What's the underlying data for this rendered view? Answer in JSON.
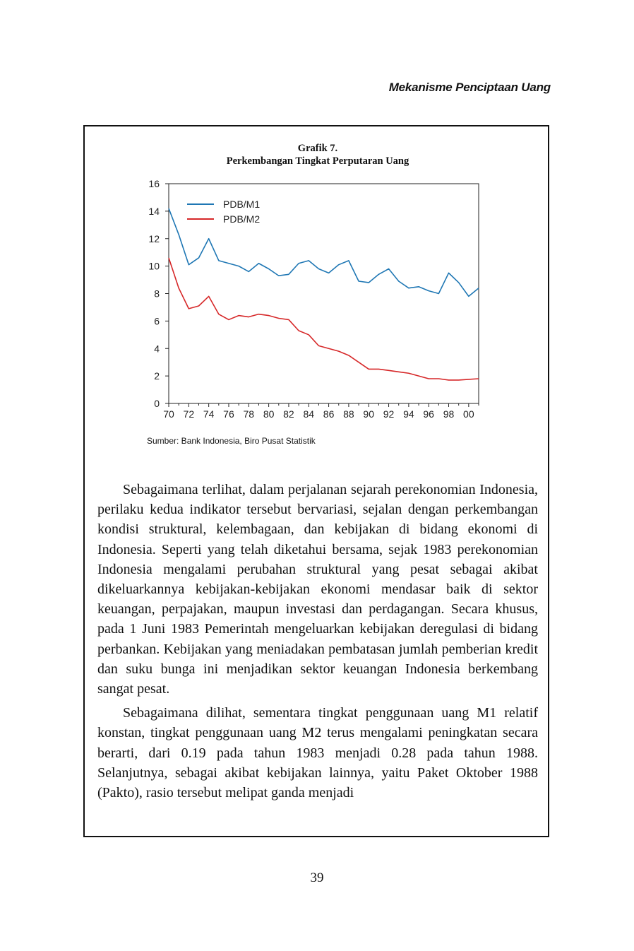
{
  "running_header": "Mekanisme Penciptaan Uang",
  "figure": {
    "label": "Grafik 7.",
    "title": "Perkembangan Tingkat Perputaran Uang",
    "source": "Sumber: Bank Indonesia, Biro Pusat Statistik"
  },
  "chart_data": {
    "type": "line",
    "title": "Perkembangan Tingkat Perputaran Uang",
    "xlabel": "",
    "ylabel": "",
    "x": [
      1970,
      1971,
      1972,
      1973,
      1974,
      1975,
      1976,
      1977,
      1978,
      1979,
      1980,
      1981,
      1982,
      1983,
      1984,
      1985,
      1986,
      1987,
      1988,
      1989,
      1990,
      1991,
      1992,
      1993,
      1994,
      1995,
      1996,
      1997,
      1998,
      1999,
      2000,
      2001
    ],
    "x_tick_labels": [
      "70",
      "72",
      "74",
      "76",
      "78",
      "80",
      "82",
      "84",
      "86",
      "88",
      "90",
      "92",
      "94",
      "96",
      "98",
      "00"
    ],
    "y_ticks": [
      0,
      2,
      4,
      6,
      8,
      10,
      12,
      14,
      16
    ],
    "ylim": [
      0,
      16
    ],
    "xlim": [
      1970,
      2001
    ],
    "legend_position": "top-left",
    "series": [
      {
        "name": "PDB/M1",
        "color": "#1f77b4",
        "values": [
          14.2,
          12.3,
          10.1,
          10.6,
          12.0,
          10.4,
          10.2,
          10.0,
          9.6,
          10.2,
          9.8,
          9.3,
          9.4,
          10.2,
          10.4,
          9.8,
          9.5,
          10.1,
          10.4,
          8.9,
          8.8,
          9.4,
          9.8,
          8.9,
          8.4,
          8.5,
          8.2,
          8.0,
          9.5,
          8.8,
          7.8,
          8.4
        ]
      },
      {
        "name": "PDB/M2",
        "color": "#d62728",
        "values": [
          10.6,
          8.4,
          6.9,
          7.1,
          7.8,
          6.5,
          6.1,
          6.4,
          6.3,
          6.5,
          6.4,
          6.2,
          6.1,
          5.3,
          5.0,
          4.2,
          4.0,
          3.8,
          3.5,
          3.0,
          2.5,
          2.5,
          2.4,
          2.3,
          2.2,
          2.0,
          1.8,
          1.8,
          1.7,
          1.7,
          1.75,
          1.8
        ]
      }
    ]
  },
  "paragraphs": [
    "Sebagaimana terlihat, dalam perjalanan sejarah perekonomian Indonesia, perilaku kedua indikator tersebut bervariasi, sejalan dengan perkembangan kondisi struktural, kelembagaan, dan kebijakan di bidang ekonomi di Indonesia. Seperti yang telah diketahui bersama, sejak 1983 perekonomian Indonesia mengalami perubahan struktural yang pesat sebagai akibat dikeluarkannya kebijakan-kebijakan ekonomi mendasar baik di sektor keuangan, perpajakan, maupun investasi dan perdagangan. Secara khusus, pada 1 Juni 1983 Pemerintah mengeluarkan kebijakan deregulasi di bidang perbankan. Kebijakan yang meniadakan pembatasan jumlah pemberian kredit dan suku bunga ini menjadikan sektor keuangan Indonesia berkembang sangat pesat.",
    "Sebagaimana dilihat, sementara tingkat penggunaan uang M1 relatif konstan, tingkat penggunaan uang M2 terus mengalami peningkatan secara berarti, dari 0.19 pada tahun 1983 menjadi 0.28 pada tahun 1988. Selanjutnya, sebagai akibat kebijakan lainnya, yaitu Paket Oktober 1988 (Pakto), rasio tersebut melipat ganda menjadi"
  ],
  "page_number": "39"
}
